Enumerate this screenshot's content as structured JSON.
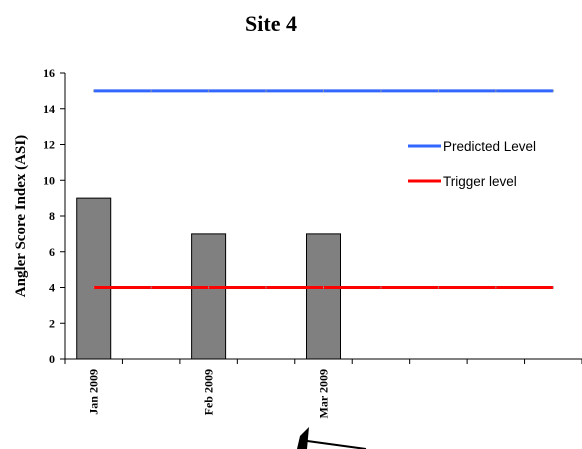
{
  "chart_data": {
    "type": "bar",
    "title": "Site 4",
    "ylabel": "Angler Score Index (ASI)",
    "xlabel": "",
    "ylim": [
      0,
      16
    ],
    "yticks": [
      0,
      2,
      4,
      6,
      8,
      10,
      12,
      14,
      16
    ],
    "categories": [
      "Jan 2009",
      "",
      "Feb 2009",
      "",
      "Mar 2009",
      "",
      "",
      "",
      ""
    ],
    "series": [
      {
        "values": [
          9,
          null,
          7,
          null,
          7,
          null,
          null,
          null,
          null
        ],
        "color": "#808080"
      }
    ],
    "reference_lines": [
      {
        "name": "Predicted Level",
        "value": 15,
        "color": "#3366ff"
      },
      {
        "name": "Trigger level",
        "value": 4,
        "color": "#ff0000"
      }
    ],
    "legend_position": "right",
    "grid": false
  }
}
